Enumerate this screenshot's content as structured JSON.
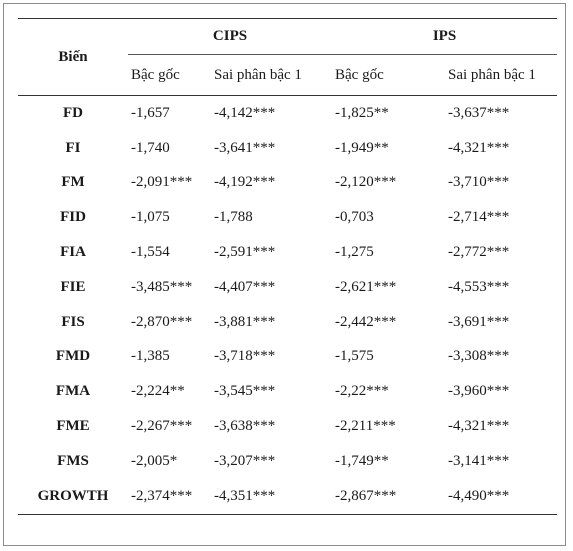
{
  "header": {
    "variable": "Biến",
    "groups": [
      "CIPS",
      "IPS"
    ],
    "subheaders": [
      "Bậc gốc",
      "Sai phân bậc 1",
      "Bậc gốc",
      "Sai phân bậc 1"
    ]
  },
  "rows": [
    {
      "var": "FD",
      "cips_level": "-1,657",
      "cips_diff": "-4,142***",
      "ips_level": "-1,825**",
      "ips_diff": "-3,637***"
    },
    {
      "var": "FI",
      "cips_level": "-1,740",
      "cips_diff": "-3,641***",
      "ips_level": "-1,949**",
      "ips_diff": "-4,321***"
    },
    {
      "var": "FM",
      "cips_level": "-2,091***",
      "cips_diff": "-4,192***",
      "ips_level": "-2,120***",
      "ips_diff": "-3,710***"
    },
    {
      "var": "FID",
      "cips_level": "-1,075",
      "cips_diff": "-1,788",
      "ips_level": "-0,703",
      "ips_diff": "-2,714***"
    },
    {
      "var": "FIA",
      "cips_level": "-1,554",
      "cips_diff": "-2,591***",
      "ips_level": "-1,275",
      "ips_diff": "-2,772***"
    },
    {
      "var": "FIE",
      "cips_level": "-3,485***",
      "cips_diff": "-4,407***",
      "ips_level": "-2,621***",
      "ips_diff": "-4,553***"
    },
    {
      "var": "FIS",
      "cips_level": "-2,870***",
      "cips_diff": "-3,881***",
      "ips_level": "-2,442***",
      "ips_diff": "-3,691***"
    },
    {
      "var": "FMD",
      "cips_level": "-1,385",
      "cips_diff": "-3,718***",
      "ips_level": "-1,575",
      "ips_diff": "-3,308***"
    },
    {
      "var": "FMA",
      "cips_level": "-2,224**",
      "cips_diff": "-3,545***",
      "ips_level": "-2,22***",
      "ips_diff": "-3,960***"
    },
    {
      "var": "FME",
      "cips_level": "-2,267***",
      "cips_diff": "-3,638***",
      "ips_level": "-2,211***",
      "ips_diff": "-4,321***"
    },
    {
      "var": "FMS",
      "cips_level": "-2,005*",
      "cips_diff": "-3,207***",
      "ips_level": "-1,749**",
      "ips_diff": "-3,141***"
    },
    {
      "var": "GROWTH",
      "cips_level": "-2,374***",
      "cips_diff": "-4,351***",
      "ips_level": "-2,867***",
      "ips_diff": "-4,490***"
    }
  ]
}
